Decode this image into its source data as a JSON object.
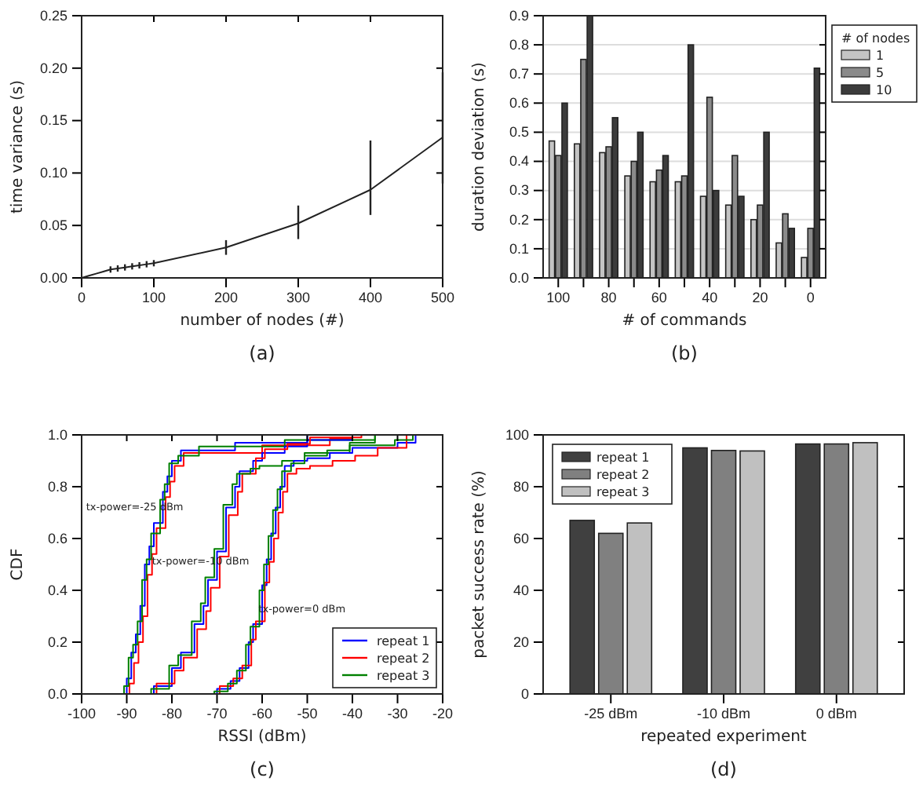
{
  "chart_data": [
    {
      "type": "line",
      "title": "(a)",
      "xlabel": "number of nodes (#)",
      "ylabel": "time variance (s)",
      "marker": "none",
      "grid": false,
      "legend": false,
      "x": [
        0,
        10,
        20,
        30,
        40,
        50,
        60,
        70,
        80,
        90,
        100,
        200,
        300,
        400,
        500
      ],
      "xlim": [
        0,
        500
      ],
      "xticks": [
        0,
        100,
        200,
        300,
        400,
        500
      ],
      "ylim": [
        0,
        0.25
      ],
      "yticks": [
        {
          "value": 0,
          "label": "0.00"
        },
        {
          "value": 0.05,
          "label": "0.05"
        },
        {
          "value": 0.1,
          "label": "0.10"
        },
        {
          "value": 0.15,
          "label": "0.15"
        },
        {
          "value": 0.2,
          "label": "0.20"
        },
        {
          "value": 0.25,
          "label": "0.25"
        }
      ],
      "series": [
        {
          "color": "#222222",
          "values": [
            0,
            0.002,
            0.004,
            0.006,
            0.008,
            0.009,
            0.01,
            0.011,
            0.012,
            0.013,
            0.014,
            0.029,
            0.052,
            0.084,
            0.134
          ],
          "errors": [
            null,
            null,
            null,
            null,
            0.003,
            0.003,
            0.003,
            0.003,
            0.003,
            0.003,
            0.003,
            0.007,
            [
              0.037,
              0.069
            ],
            [
              0.06,
              0.131
            ],
            [
              0.09,
              0.196
            ]
          ]
        }
      ]
    },
    {
      "type": "bar",
      "title": "(b)",
      "xlabel": "# of commands",
      "ylabel": "duration deviation (s)",
      "legend_title": "# of nodes",
      "grid": "y",
      "legend": "right",
      "categories": [
        "100",
        null,
        "80",
        null,
        "60",
        null,
        "40",
        null,
        "20",
        null,
        "0"
      ],
      "ylim": [
        0,
        0.9
      ],
      "yticks": [
        {
          "value": 0,
          "label": "0.0"
        },
        0.1,
        0.2,
        0.3,
        0.4,
        0.5,
        0.6,
        0.7,
        0.8,
        0.9
      ],
      "series": [
        {
          "name": "1",
          "color": "#c4c4c4",
          "values": [
            0.47,
            0.46,
            0.43,
            0.35,
            0.33,
            0.33,
            0.28,
            0.25,
            0.2,
            0.12,
            0.07
          ]
        },
        {
          "name": "5",
          "color": "#8a8a8a",
          "values": [
            0.42,
            0.75,
            0.45,
            0.4,
            0.37,
            0.35,
            0.62,
            0.42,
            0.25,
            0.22,
            0.17
          ]
        },
        {
          "name": "10",
          "color": "#3c3c3c",
          "values": [
            0.6,
            0.9,
            0.55,
            0.5,
            0.42,
            0.8,
            0.3,
            0.28,
            0.5,
            0.17,
            0.72
          ]
        }
      ]
    },
    {
      "type": "step",
      "title": "(c)",
      "xlabel": "RSSI (dBm)",
      "ylabel": "CDF",
      "annotations": [
        "tx-power=-25 dBm",
        "tx-power=-10 dBm",
        "tx-power=0 dBm"
      ],
      "grid": false,
      "legend": "bottom right",
      "xlim": [
        -100,
        -20
      ],
      "xticks": [
        -100,
        -90,
        -80,
        -70,
        -60,
        -50,
        -40,
        -30,
        -20
      ],
      "ylim": [
        0,
        1
      ],
      "yticks": [
        {
          "value": 0,
          "label": "0.0"
        },
        0.2,
        0.4,
        0.6,
        0.8,
        {
          "value": 1,
          "label": "1.0"
        }
      ],
      "series": [
        {
          "name": "repeat 1",
          "color": "#0000ff",
          "x": [
            -91,
            -90,
            -89,
            -88,
            -87,
            -86,
            -85,
            -84,
            -82,
            -81,
            -80,
            -78,
            -66,
            -50
          ],
          "values": [
            0,
            0.06,
            0.16,
            0.23,
            0.34,
            0.5,
            0.57,
            0.66,
            0.78,
            0.84,
            0.9,
            0.94,
            0.97,
            1
          ]
        },
        {
          "name": "repeat 2",
          "color": "#ff0000",
          "x": [
            -90.4,
            -89.4,
            -88.4,
            -87.4,
            -86.4,
            -85.4,
            -84.4,
            -83.4,
            -81.4,
            -80.4,
            -79.4,
            -77.4,
            -60,
            -45,
            -40
          ],
          "values": [
            0,
            0.04,
            0.12,
            0.2,
            0.3,
            0.46,
            0.54,
            0.64,
            0.76,
            0.82,
            0.88,
            0.93,
            0.96,
            0.985,
            1
          ]
        },
        {
          "name": "repeat 3",
          "color": "#008000",
          "x": [
            -91.6,
            -90.6,
            -89.6,
            -88.6,
            -87.6,
            -86.6,
            -85.6,
            -84.6,
            -82.6,
            -81.6,
            -80.6,
            -78.6,
            -74,
            -55,
            -35
          ],
          "values": [
            0,
            0.03,
            0.14,
            0.19,
            0.28,
            0.44,
            0.52,
            0.62,
            0.75,
            0.81,
            0.89,
            0.92,
            0.955,
            0.98,
            1
          ]
        },
        {
          "color": "#0000ff",
          "x": [
            -90,
            -84,
            -80,
            -78,
            -75,
            -73,
            -72,
            -70,
            -68,
            -66,
            -65,
            -62,
            -60,
            -55,
            -50,
            -40
          ],
          "values": [
            0,
            0.03,
            0.1,
            0.16,
            0.27,
            0.34,
            0.44,
            0.55,
            0.72,
            0.8,
            0.86,
            0.9,
            0.93,
            0.955,
            0.98,
            1
          ]
        },
        {
          "color": "#ff0000",
          "x": [
            -88,
            -83.4,
            -79.4,
            -77.4,
            -74.4,
            -72.4,
            -71.4,
            -69.4,
            -67.4,
            -65.4,
            -64.4,
            -61.4,
            -59.4,
            -54.4,
            -49.4,
            -38
          ],
          "values": [
            0,
            0.04,
            0.09,
            0.14,
            0.25,
            0.32,
            0.41,
            0.53,
            0.69,
            0.78,
            0.85,
            0.91,
            0.945,
            0.965,
            0.99,
            1
          ]
        },
        {
          "color": "#008000",
          "x": [
            -91,
            -84.6,
            -80.6,
            -78.6,
            -75.6,
            -73.6,
            -72.6,
            -70.6,
            -68.6,
            -66.6,
            -65.6,
            -62.6,
            -60.6,
            -55.6,
            -50.6,
            -40.6,
            -35
          ],
          "values": [
            0,
            0.02,
            0.11,
            0.15,
            0.28,
            0.35,
            0.45,
            0.56,
            0.73,
            0.81,
            0.85,
            0.87,
            0.88,
            0.9,
            0.93,
            0.97,
            1
          ]
        },
        {
          "color": "#0000ff",
          "x": [
            -75,
            -70,
            -67,
            -65,
            -63,
            -62,
            -60,
            -59,
            -58,
            -57,
            -56,
            -55,
            -53,
            -50,
            -45,
            -40,
            -30,
            -26
          ],
          "values": [
            0,
            0.02,
            0.05,
            0.1,
            0.2,
            0.27,
            0.42,
            0.52,
            0.62,
            0.72,
            0.8,
            0.88,
            0.9,
            0.91,
            0.93,
            0.95,
            0.97,
            1
          ]
        },
        {
          "color": "#ff0000",
          "x": [
            -73,
            -69.4,
            -66.4,
            -64.4,
            -62.4,
            -61.4,
            -59.4,
            -58.4,
            -57.4,
            -56.4,
            -55.4,
            -54.4,
            -52.4,
            -49.4,
            -44.4,
            -39.4,
            -34.4,
            -28
          ],
          "values": [
            0,
            0.03,
            0.06,
            0.11,
            0.21,
            0.28,
            0.43,
            0.51,
            0.6,
            0.7,
            0.78,
            0.85,
            0.87,
            0.88,
            0.9,
            0.92,
            0.95,
            1
          ]
        },
        {
          "color": "#008000",
          "x": [
            -77,
            -70.6,
            -67.6,
            -65.6,
            -63.6,
            -62.6,
            -60.6,
            -59.6,
            -58.6,
            -57.6,
            -56.6,
            -55.6,
            -53.6,
            -50.6,
            -45.6,
            -40.6,
            -30.6,
            -26.6
          ],
          "values": [
            0,
            0.01,
            0.04,
            0.09,
            0.19,
            0.26,
            0.4,
            0.5,
            0.61,
            0.71,
            0.79,
            0.86,
            0.89,
            0.92,
            0.94,
            0.96,
            0.98,
            1
          ]
        }
      ]
    },
    {
      "type": "bar",
      "title": "(d)",
      "xlabel": "repeated experiment",
      "ylabel": "packet success rate (%)",
      "grid": false,
      "legend": "top left",
      "categories": [
        "-25 dBm",
        "-10 dBm",
        "0 dBm"
      ],
      "ylim": [
        0,
        100
      ],
      "yticks": [
        0,
        20,
        40,
        60,
        80,
        100
      ],
      "series": [
        {
          "name": "repeat 1",
          "color": "#404040",
          "values": [
            67,
            95,
            96.5
          ]
        },
        {
          "name": "repeat 2",
          "color": "#808080",
          "values": [
            62,
            94,
            96.5
          ]
        },
        {
          "name": "repeat 3",
          "color": "#c0c0c0",
          "values": [
            66,
            93.8,
            97
          ]
        }
      ]
    }
  ]
}
